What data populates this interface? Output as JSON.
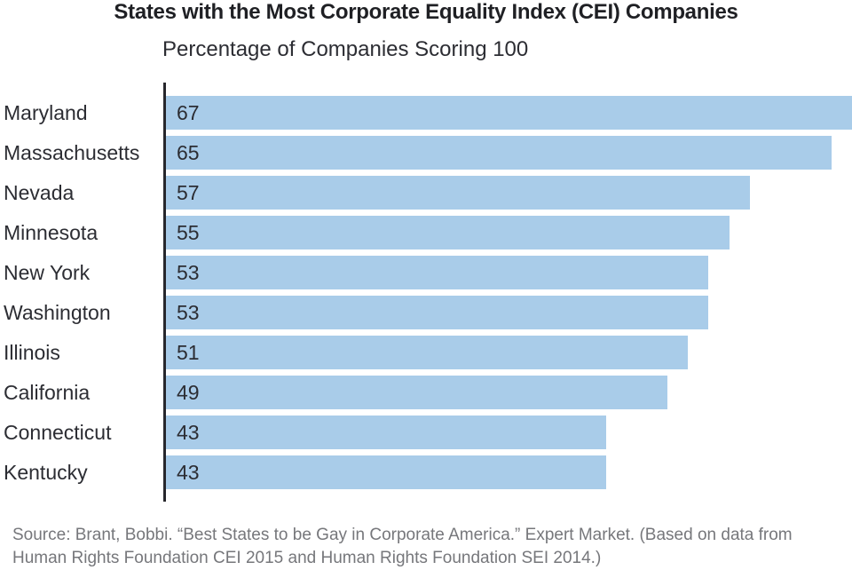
{
  "chart_data": {
    "type": "bar",
    "orientation": "horizontal",
    "title": "States with the Most Corporate Equality Index (CEI) Companies",
    "subtitle": "Percentage of Companies Scoring 100",
    "categories": [
      "Maryland",
      "Massachusetts",
      "Nevada",
      "Minnesota",
      "New York",
      "Washington",
      "Illinois",
      "California",
      "Connecticut",
      "Kentucky"
    ],
    "values": [
      67,
      65,
      57,
      55,
      53,
      53,
      51,
      49,
      43,
      43
    ],
    "value_labels_shown_inside_bars": true,
    "xlabel": "",
    "ylabel": "",
    "xlim": [
      0,
      67
    ],
    "grid": false,
    "legend": false,
    "axis_ticks_shown": false
  },
  "colors": {
    "bar_fill": "#a9cce9",
    "axis_line": "#27272c",
    "label_text": "#2c2d33",
    "title_text": "#1f2024",
    "source_text": "#76777b",
    "background": "#ffffff"
  },
  "source_lines": [
    "Source: Brant, Bobbi. “Best States to be Gay in Corporate America.” Expert Market. (Based on data from",
    "Human Rights Foundation CEI 2015 and Human Rights Foundation SEI 2014.)"
  ]
}
